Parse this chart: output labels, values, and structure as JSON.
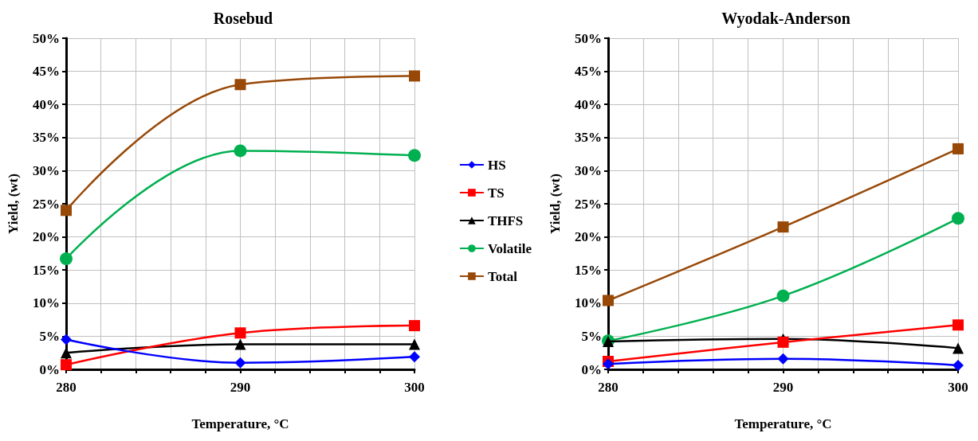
{
  "chart_data": [
    {
      "type": "line",
      "title": "Rosebud",
      "xlabel": "Temperature, °C",
      "ylabel": "Yield, (wt)",
      "x": [
        280,
        290,
        300
      ],
      "xlim": [
        280,
        300
      ],
      "xticks": [
        280,
        {
          "value": 282,
          "label": null
        },
        {
          "value": 284,
          "label": null
        },
        {
          "value": 286,
          "label": null
        },
        {
          "value": 288,
          "label": null
        },
        290,
        {
          "value": 292,
          "label": null
        },
        {
          "value": 294,
          "label": null
        },
        {
          "value": 296,
          "label": null
        },
        {
          "value": 298,
          "label": null
        },
        300
      ],
      "ylim": [
        0,
        50
      ],
      "yticks": [
        {
          "value": 0,
          "label": "0%"
        },
        {
          "value": 5,
          "label": "5%"
        },
        {
          "value": 10,
          "label": "10%"
        },
        {
          "value": 15,
          "label": "15%"
        },
        {
          "value": 20,
          "label": "20%"
        },
        {
          "value": 25,
          "label": "25%"
        },
        {
          "value": 30,
          "label": "30%"
        },
        {
          "value": 35,
          "label": "35%"
        },
        {
          "value": 40,
          "label": "40%"
        },
        {
          "value": 45,
          "label": "45%"
        },
        {
          "value": 50,
          "label": "50%"
        }
      ],
      "grid": true,
      "legend": "right",
      "series": [
        {
          "name": "HS",
          "color": "#0000ff",
          "marker": "diamond",
          "values": [
            4.5,
            1.0,
            1.9
          ]
        },
        {
          "name": "TS",
          "color": "#ff0000",
          "marker": "square",
          "values": [
            0.7,
            5.5,
            6.6
          ]
        },
        {
          "name": "THFS",
          "color": "#000000",
          "marker": "triangle",
          "values": [
            2.5,
            3.8,
            3.8
          ]
        },
        {
          "name": "Volatile",
          "color": "#00b050",
          "marker": "circle",
          "values": [
            16.7,
            33.0,
            32.3
          ]
        },
        {
          "name": "Total",
          "color": "#984807",
          "marker": "square",
          "values": [
            24.0,
            43.0,
            44.3
          ]
        }
      ]
    },
    {
      "type": "line",
      "title": "Wyodak-Anderson",
      "xlabel": "Temperature, °C",
      "ylabel": "Yield, (wt)",
      "x": [
        280,
        290,
        300
      ],
      "xlim": [
        280,
        300
      ],
      "xticks": [
        280,
        {
          "value": 282,
          "label": null
        },
        {
          "value": 284,
          "label": null
        },
        {
          "value": 286,
          "label": null
        },
        {
          "value": 288,
          "label": null
        },
        290,
        {
          "value": 292,
          "label": null
        },
        {
          "value": 294,
          "label": null
        },
        {
          "value": 296,
          "label": null
        },
        {
          "value": 298,
          "label": null
        },
        300
      ],
      "ylim": [
        0,
        50
      ],
      "yticks": [
        {
          "value": 0,
          "label": "0%"
        },
        {
          "value": 5,
          "label": "5%"
        },
        {
          "value": 10,
          "label": "10%"
        },
        {
          "value": 15,
          "label": "15%"
        },
        {
          "value": 20,
          "label": "20%"
        },
        {
          "value": 25,
          "label": "25%"
        },
        {
          "value": 30,
          "label": "30%"
        },
        {
          "value": 35,
          "label": "35%"
        },
        {
          "value": 40,
          "label": "40%"
        },
        {
          "value": 45,
          "label": "45%"
        },
        {
          "value": 50,
          "label": "50%"
        }
      ],
      "grid": true,
      "series": [
        {
          "color": "#0000ff",
          "marker": "diamond",
          "values": [
            0.8,
            1.6,
            0.6
          ]
        },
        {
          "color": "#ff0000",
          "marker": "square",
          "values": [
            1.2,
            4.1,
            6.7
          ]
        },
        {
          "color": "#000000",
          "marker": "triangle",
          "values": [
            4.2,
            4.6,
            3.2
          ]
        },
        {
          "color": "#00b050",
          "marker": "circle",
          "values": [
            4.3,
            11.1,
            22.8
          ]
        },
        {
          "color": "#984807",
          "marker": "square",
          "values": [
            10.4,
            21.5,
            33.3
          ]
        }
      ]
    }
  ]
}
